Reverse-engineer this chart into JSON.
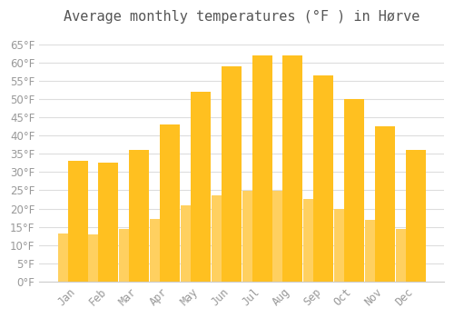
{
  "title": "Average monthly temperatures (°F ) in Hørve",
  "months": [
    "Jan",
    "Feb",
    "Mar",
    "Apr",
    "May",
    "Jun",
    "Jul",
    "Aug",
    "Sep",
    "Oct",
    "Nov",
    "Dec"
  ],
  "values": [
    33.0,
    32.5,
    36.0,
    43.0,
    52.0,
    59.0,
    62.0,
    62.0,
    56.5,
    50.0,
    42.5,
    36.0
  ],
  "bar_color_top": "#FFC020",
  "bar_color_bottom": "#FFD060",
  "bar_edge_color": "#E8A000",
  "bg_color": "#FFFFFF",
  "grid_color": "#DDDDDD",
  "ylim": [
    0,
    68
  ],
  "yticks": [
    0,
    5,
    10,
    15,
    20,
    25,
    30,
    35,
    40,
    45,
    50,
    55,
    60,
    65
  ],
  "title_fontsize": 11,
  "tick_fontsize": 8.5,
  "font_color": "#999999"
}
